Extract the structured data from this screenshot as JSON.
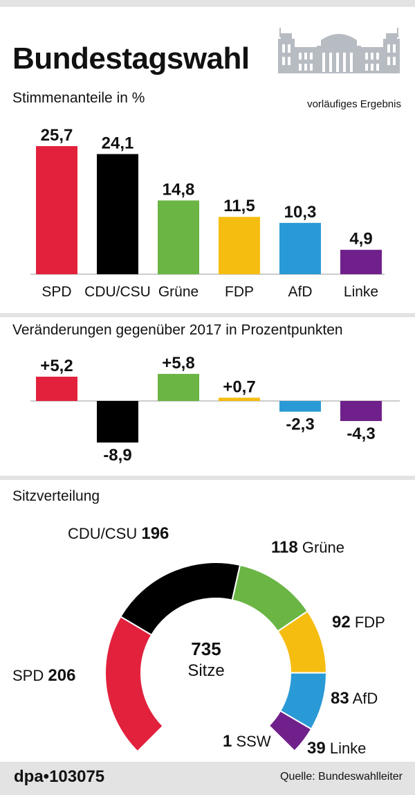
{
  "header": {
    "title": "Bundestagswahl",
    "subtitle": "Stimmenanteile in %",
    "note": "vorläufiges Ergebnis"
  },
  "changes": {
    "title": "Veränderungen gegenüber 2017 in Prozentpunkten"
  },
  "seats": {
    "title": "Sitzverteilung",
    "total_value": "735",
    "total_label": "Sitze"
  },
  "footer": {
    "brand": "dpa•103075",
    "source": "Quelle: Bundeswahlleiter"
  },
  "chart_data": [
    {
      "type": "bar",
      "title": "Stimmenanteile in %",
      "categories": [
        "SPD",
        "CDU/CSU",
        "Grüne",
        "FDP",
        "AfD",
        "Linke"
      ],
      "values": [
        25.7,
        24.1,
        14.8,
        11.5,
        10.3,
        4.9
      ],
      "labels": [
        "25,7",
        "24,1",
        "14,8",
        "11,5",
        "10,3",
        "4,9"
      ],
      "colors": [
        "#e2213d",
        "#000000",
        "#6ab544",
        "#f6bd11",
        "#2a9ad6",
        "#70208a"
      ],
      "ylim": [
        0,
        27.5
      ]
    },
    {
      "type": "bar",
      "title": "Veränderungen gegenüber 2017 in Prozentpunkten",
      "categories": [
        "SPD",
        "CDU/CSU",
        "Grüne",
        "FDP",
        "AfD",
        "Linke"
      ],
      "values": [
        5.2,
        -8.9,
        5.8,
        0.7,
        -2.3,
        -4.3
      ],
      "labels": [
        "+5,2",
        "-8,9",
        "+5,8",
        "+0,7",
        "-2,3",
        "-4,3"
      ],
      "colors": [
        "#e2213d",
        "#000000",
        "#6ab544",
        "#f6bd11",
        "#2a9ad6",
        "#70208a"
      ],
      "ylim": [
        -9,
        6
      ]
    },
    {
      "type": "pie",
      "subtype": "parliament-half-donut",
      "title": "Sitzverteilung",
      "total": 735,
      "slices": [
        {
          "name": "SPD",
          "value": 206,
          "color": "#e2213d",
          "label_side": "left"
        },
        {
          "name": "CDU/CSU",
          "value": 196,
          "color": "#000000",
          "label_side": "left"
        },
        {
          "name": "Grüne",
          "value": 118,
          "color": "#6ab544",
          "label_side": "right"
        },
        {
          "name": "FDP",
          "value": 92,
          "color": "#f6bd11",
          "label_side": "right"
        },
        {
          "name": "AfD",
          "value": 83,
          "color": "#2a9ad6",
          "label_side": "right"
        },
        {
          "name": "Linke",
          "value": 39,
          "color": "#70208a",
          "label_side": "right"
        },
        {
          "name": "SSW",
          "value": 1,
          "color": "#3bb0e8",
          "label_side": "left"
        }
      ]
    }
  ]
}
